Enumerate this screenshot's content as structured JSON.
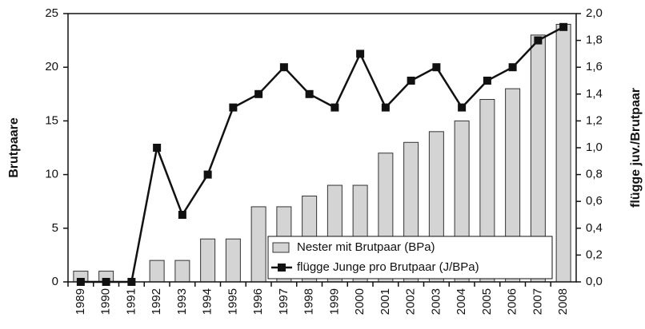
{
  "chart_data": {
    "type": "combo",
    "categories": [
      "1989",
      "1990",
      "1991",
      "1992",
      "1993",
      "1994",
      "1995",
      "1996",
      "1997",
      "1998",
      "1999",
      "2000",
      "2001",
      "2002",
      "2003",
      "2004",
      "2005",
      "2006",
      "2007",
      "2008"
    ],
    "series": [
      {
        "name": "Nester mit Brutpaar (BPa)",
        "type": "bar",
        "color": "#d4d4d4",
        "values": [
          1,
          1,
          0,
          2,
          2,
          4,
          4,
          7,
          7,
          8,
          9,
          9,
          12,
          13,
          14,
          15,
          17,
          18,
          23,
          24
        ]
      },
      {
        "name": "flügge Junge pro Brutpaar (J/BPa)",
        "type": "line",
        "axis": "y2",
        "color": "#111111",
        "values": [
          0,
          0,
          0,
          1.0,
          0.5,
          0.8,
          1.3,
          1.4,
          1.6,
          1.4,
          1.3,
          1.7,
          1.3,
          1.5,
          1.6,
          1.3,
          1.5,
          1.6,
          1.8,
          1.9
        ]
      }
    ],
    "ylabel": "Brutpaare",
    "y2label": "flügge juv./Brutpaar",
    "ylim": [
      0,
      25
    ],
    "yticks": [
      0,
      5,
      10,
      15,
      20,
      25
    ],
    "y2lim": [
      0,
      2
    ],
    "y2ticks": [
      {
        "value": 0,
        "label": "0,0"
      },
      {
        "value": 0.2,
        "label": "0,2"
      },
      {
        "value": 0.4,
        "label": "0,4"
      },
      {
        "value": 0.6,
        "label": "0,6"
      },
      {
        "value": 0.8,
        "label": "0,8"
      },
      {
        "value": 1.0,
        "label": "1,0"
      },
      {
        "value": 1.2,
        "label": "1,2"
      },
      {
        "value": 1.4,
        "label": "1,4"
      },
      {
        "value": 1.6,
        "label": "1,6"
      },
      {
        "value": 1.8,
        "label": "1,8"
      },
      {
        "value": 2.0,
        "label": "2,0"
      }
    ],
    "grid": false,
    "legend": "lower right"
  }
}
